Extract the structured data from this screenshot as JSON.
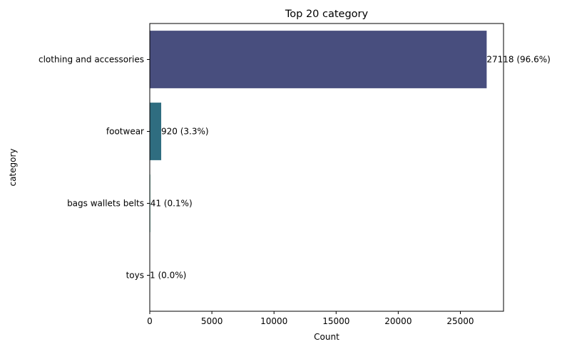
{
  "chart_data": {
    "type": "bar",
    "orientation": "horizontal",
    "title": "Top 20 category",
    "xlabel": "Count",
    "ylabel": "category",
    "categories": [
      "clothing and accessories",
      "footwear",
      "bags wallets belts",
      "toys"
    ],
    "values": [
      27118,
      920,
      41,
      1
    ],
    "data_labels": [
      "27118 (96.6%)",
      "920 (3.3%)",
      "41 (0.1%)",
      "1 (0.0%)"
    ],
    "bar_colors": [
      "#484e7e",
      "#2f6d80",
      "#22a884",
      "#7ad151"
    ],
    "xlim": [
      0,
      28474
    ],
    "xticks": [
      0,
      5000,
      10000,
      15000,
      20000,
      25000
    ],
    "grid": false,
    "legend": "none"
  }
}
